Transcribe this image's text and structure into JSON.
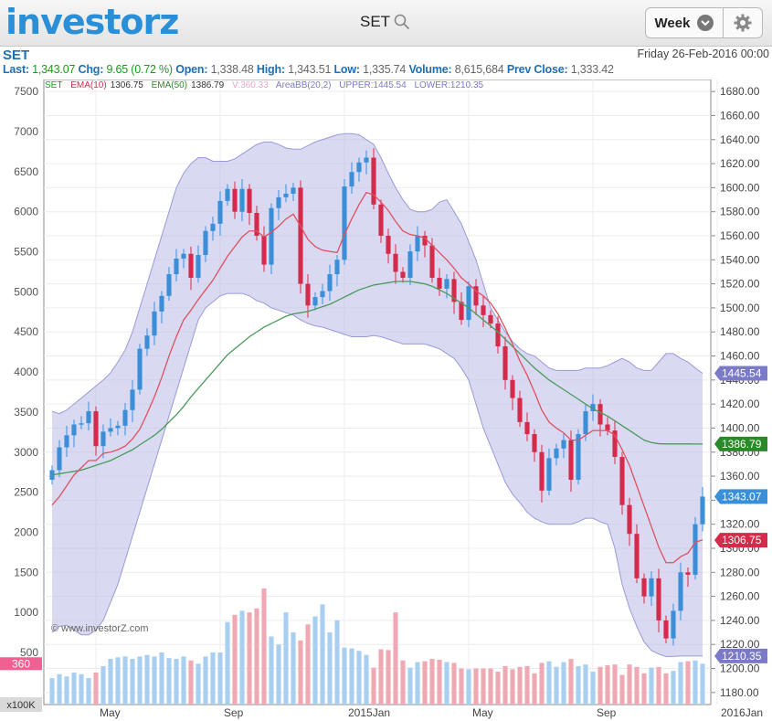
{
  "app": {
    "logo": "investorz",
    "symbol_search": "SET",
    "timeframe": "Week"
  },
  "header": {
    "symbol": "SET",
    "date": "Friday 26-Feb-2016 00:00",
    "last_label": "Last:",
    "last": "1,343.07",
    "chg_label": "Chg:",
    "chg": "9.65 (0.72 %)",
    "open_label": "Open:",
    "open": "1,338.48",
    "high_label": "High:",
    "high": "1,343.51",
    "low_label": "Low:",
    "low": "1,335.74",
    "volume_label": "Volume:",
    "volume": "8,615,684",
    "prev_label": "Prev Close:",
    "prev": "1,333.42"
  },
  "legend": {
    "set": "SET",
    "ema10_label": "EMA(10)",
    "ema10": "1306.75",
    "ema50_label": "EMA(50)",
    "ema50": "1386.79",
    "vol": "V:360.33",
    "bb": "AreaBB(20,2)",
    "upper": "UPPER:1445.54",
    "lower": "LOWER:1210.35"
  },
  "watermark": "© www.investorZ.com",
  "colors": {
    "up": "#3a8fd9",
    "down": "#d62a4a",
    "ema10": "#e05060",
    "ema50": "#4a9a5a",
    "band": "#b9b9e8",
    "bandLine": "#9a9ad6",
    "volUp": "#a8cff2",
    "volDown": "#f2a8b4"
  },
  "chart_data": {
    "type": "candlestick",
    "title": "SET",
    "timeframe": "Week",
    "y_right": {
      "range": [
        1170,
        1690
      ],
      "ticks": [
        1180,
        1200,
        1220,
        1240,
        1260,
        1280,
        1300,
        1320,
        1340,
        1360,
        1380,
        1400,
        1420,
        1440,
        1460,
        1480,
        1500,
        1520,
        1540,
        1560,
        1580,
        1600,
        1620,
        1640,
        1660,
        1680
      ]
    },
    "y_left": {
      "range": [
        -150,
        7650
      ],
      "ticks": [
        500,
        1000,
        1500,
        2000,
        2500,
        3000,
        3500,
        4000,
        4500,
        5000,
        5500,
        6000,
        6500,
        7000,
        7500
      ],
      "unit_label": "x100K",
      "current_volume_tag": "360"
    },
    "x_labels": [
      {
        "label": "May",
        "index": 6
      },
      {
        "label": "Sep",
        "index": 23
      },
      {
        "label": "2015Jan",
        "index": 40
      },
      {
        "label": "May",
        "index": 57
      },
      {
        "label": "Sep",
        "index": 74
      },
      {
        "label": "2016Jan",
        "index": 91
      }
    ],
    "price_tags": [
      {
        "value": 1445.54,
        "text": "1445.54",
        "color": "#7a7ac8"
      },
      {
        "value": 1386.79,
        "text": "1386.79",
        "color": "#2a8a2a"
      },
      {
        "value": 1343.07,
        "text": "1343.07",
        "color": "#3a8fd9"
      },
      {
        "value": 1306.75,
        "text": "1306.75",
        "color": "#d62a4a"
      },
      {
        "value": 1210.35,
        "text": "1210.35",
        "color": "#7a7ac8"
      }
    ],
    "closes": [
      1365,
      1384,
      1394,
      1403,
      1404,
      1414,
      1385,
      1397,
      1400,
      1402,
      1415,
      1432,
      1466,
      1477,
      1497,
      1510,
      1528,
      1541,
      1545,
      1525,
      1544,
      1564,
      1570,
      1589,
      1599,
      1580,
      1599,
      1579,
      1560,
      1536,
      1583,
      1592,
      1595,
      1600,
      1520,
      1502,
      1509,
      1514,
      1528,
      1540,
      1601,
      1613,
      1621,
      1625,
      1586,
      1560,
      1545,
      1530,
      1525,
      1547,
      1560,
      1552,
      1525,
      1516,
      1524,
      1505,
      1490,
      1518,
      1502,
      1494,
      1487,
      1468,
      1440,
      1425,
      1405,
      1395,
      1380,
      1348,
      1375,
      1383,
      1390,
      1357,
      1395,
      1414,
      1420,
      1403,
      1398,
      1376,
      1336,
      1312,
      1275,
      1260,
      1275,
      1240,
      1225,
      1248,
      1280,
      1278,
      1320,
      1343
    ],
    "ema10": [
      1336,
      1343,
      1352,
      1361,
      1367,
      1373,
      1373,
      1379,
      1380,
      1382,
      1385,
      1391,
      1399,
      1412,
      1426,
      1442,
      1460,
      1476,
      1490,
      1498,
      1507,
      1515,
      1523,
      1533,
      1543,
      1551,
      1559,
      1564,
      1564,
      1559,
      1563,
      1568,
      1574,
      1578,
      1568,
      1557,
      1551,
      1548,
      1547,
      1546,
      1561,
      1574,
      1586,
      1596,
      1594,
      1588,
      1581,
      1572,
      1564,
      1561,
      1560,
      1558,
      1552,
      1546,
      1540,
      1533,
      1525,
      1520,
      1514,
      1510,
      1504,
      1495,
      1483,
      1470,
      1456,
      1444,
      1430,
      1415,
      1405,
      1400,
      1396,
      1390,
      1390,
      1394,
      1398,
      1398,
      1398,
      1394,
      1382,
      1369,
      1352,
      1335,
      1318,
      1301,
      1288,
      1288,
      1293,
      1296,
      1305,
      1307
    ],
    "ema50": [
      1361,
      1362,
      1363,
      1364,
      1365,
      1367,
      1369,
      1371,
      1373,
      1376,
      1379,
      1382,
      1386,
      1390,
      1394,
      1399,
      1405,
      1411,
      1418,
      1426,
      1433,
      1440,
      1447,
      1454,
      1461,
      1466,
      1471,
      1476,
      1480,
      1484,
      1487,
      1490,
      1493,
      1495,
      1496,
      1497,
      1499,
      1501,
      1503,
      1506,
      1509,
      1512,
      1515,
      1517,
      1519,
      1520,
      1521,
      1522,
      1522,
      1522,
      1521,
      1520,
      1518,
      1515,
      1512,
      1508,
      1504,
      1500,
      1495,
      1490,
      1485,
      1480,
      1474,
      1468,
      1462,
      1456,
      1450,
      1445,
      1440,
      1436,
      1432,
      1428,
      1424,
      1420,
      1416,
      1413,
      1410,
      1406,
      1402,
      1398,
      1394,
      1390,
      1388,
      1387,
      1386.8,
      1386.8,
      1386.8,
      1386.8,
      1386.79,
      1386.79
    ],
    "bb_upper": [
      1414,
      1412,
      1415,
      1420,
      1425,
      1430,
      1435,
      1440,
      1446,
      1455,
      1465,
      1480,
      1500,
      1520,
      1540,
      1560,
      1580,
      1600,
      1612,
      1620,
      1625,
      1625,
      1622,
      1622,
      1622,
      1624,
      1628,
      1632,
      1636,
      1638,
      1638,
      1636,
      1633,
      1632,
      1632,
      1635,
      1638,
      1640,
      1642,
      1644,
      1645,
      1645,
      1644,
      1640,
      1636,
      1625,
      1612,
      1600,
      1590,
      1582,
      1580,
      1580,
      1582,
      1588,
      1590,
      1580,
      1570,
      1555,
      1540,
      1520,
      1500,
      1490,
      1480,
      1472,
      1466,
      1462,
      1460,
      1455,
      1450,
      1448,
      1448,
      1448,
      1448,
      1450,
      1450,
      1450,
      1452,
      1455,
      1458,
      1455,
      1450,
      1448,
      1448,
      1455,
      1462,
      1462,
      1458,
      1455,
      1450,
      1445.54
    ],
    "bb_lower": [
      1230,
      1235,
      1236,
      1232,
      1228,
      1228,
      1232,
      1240,
      1255,
      1270,
      1290,
      1310,
      1330,
      1350,
      1370,
      1390,
      1410,
      1430,
      1450,
      1470,
      1490,
      1500,
      1505,
      1510,
      1512,
      1512,
      1512,
      1510,
      1506,
      1504,
      1500,
      1498,
      1496,
      1494,
      1490,
      1487,
      1485,
      1484,
      1482,
      1480,
      1478,
      1476,
      1476,
      1476,
      1477,
      1476,
      1474,
      1472,
      1470,
      1470,
      1470,
      1470,
      1468,
      1466,
      1462,
      1458,
      1450,
      1440,
      1420,
      1400,
      1385,
      1370,
      1355,
      1345,
      1338,
      1330,
      1325,
      1322,
      1320,
      1320,
      1320,
      1320,
      1322,
      1325,
      1325,
      1322,
      1320,
      1300,
      1270,
      1250,
      1235,
      1222,
      1215,
      1212,
      1210,
      1210,
      1210.35,
      1210.35,
      1210.35,
      1210.35
    ],
    "volumes": [
      180,
      230,
      200,
      250,
      230,
      180,
      250,
      330,
      420,
      440,
      450,
      420,
      450,
      470,
      450,
      500,
      430,
      420,
      450,
      400,
      360,
      450,
      500,
      500,
      880,
      970,
      1020,
      1000,
      1050,
      1300,
      700,
      600,
      1000,
      750,
      650,
      850,
      950,
      1100,
      750,
      900,
      560,
      550,
      520,
      470,
      310,
      540,
      530,
      1000,
      400,
      310,
      380,
      390,
      420,
      410,
      380,
      370,
      300,
      290,
      300,
      300,
      300,
      260,
      330,
      290,
      320,
      330,
      240,
      370,
      390,
      320,
      380,
      420,
      330,
      350,
      260,
      320,
      340,
      350,
      220,
      350,
      320,
      240,
      310,
      320,
      240,
      270,
      380,
      390,
      400,
      360
    ]
  }
}
